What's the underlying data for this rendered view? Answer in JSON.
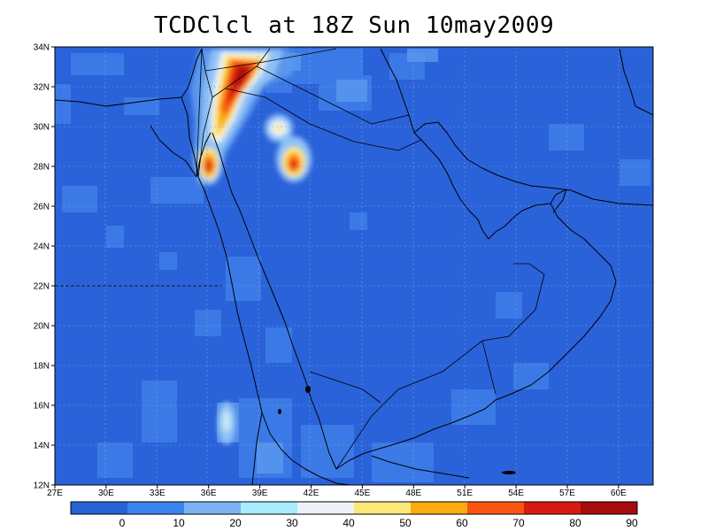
{
  "title": "TCDClcl at 18Z Sun 10may2009",
  "map": {
    "lon_labels": [
      "27E",
      "30E",
      "33E",
      "36E",
      "39E",
      "42E",
      "45E",
      "48E",
      "51E",
      "54E",
      "57E",
      "60E"
    ],
    "lat_labels": [
      "34N",
      "32N",
      "30N",
      "28N",
      "26N",
      "24N",
      "22N",
      "20N",
      "18N",
      "16N",
      "14N",
      "12N"
    ],
    "background_color": "#2a62d9",
    "grid": "dashed"
  },
  "colorbar": {
    "labels": [
      "0",
      "10",
      "20",
      "30",
      "40",
      "50",
      "60",
      "70",
      "80",
      "90"
    ],
    "colors": [
      "#2763d6",
      "#3c84ee",
      "#7cb2f2",
      "#a7ecff",
      "#eef2f7",
      "#fde87a",
      "#fcac0e",
      "#fa5413",
      "#d61b10",
      "#a80b0b"
    ]
  }
}
